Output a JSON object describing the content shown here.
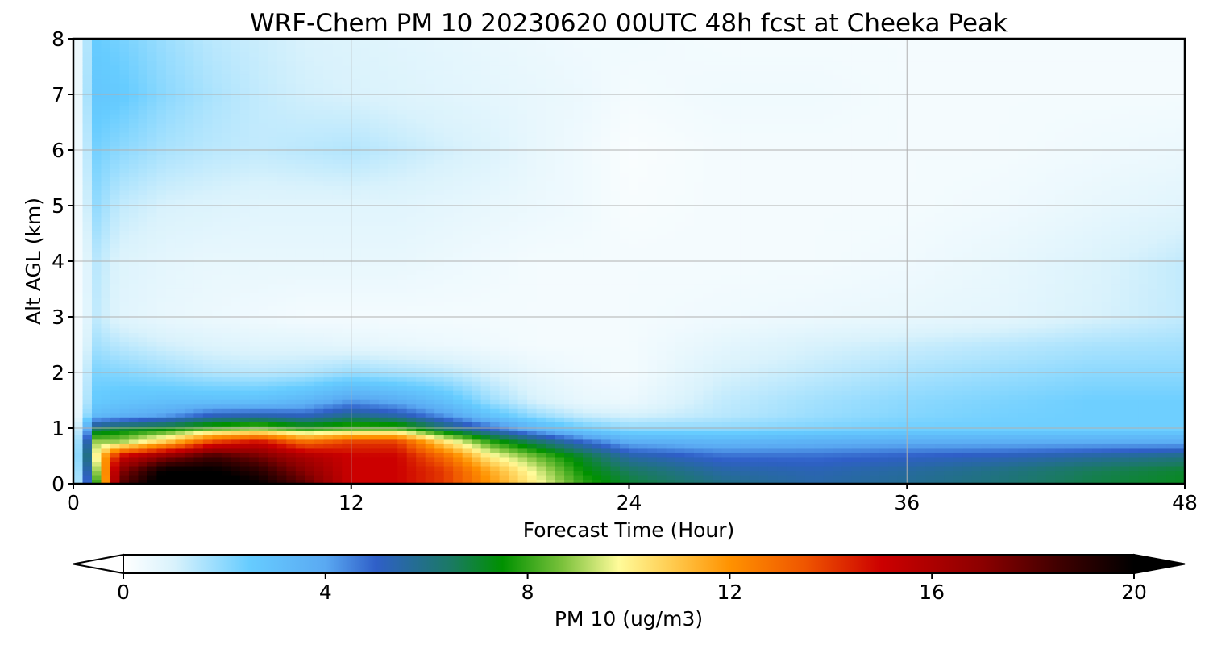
{
  "chart_data": {
    "type": "heatmap",
    "title": "WRF-Chem PM 10  20230620 00UTC 48h fcst at Cheeka Peak",
    "xlabel": "Forecast Time (Hour)",
    "ylabel": "Alt AGL (km)",
    "xlim": [
      0,
      48
    ],
    "ylim": [
      0,
      8
    ],
    "x_ticks": [
      0,
      12,
      24,
      36,
      48
    ],
    "y_ticks": [
      0,
      1,
      2,
      3,
      4,
      5,
      6,
      7,
      8
    ],
    "grid": true,
    "x": [
      0,
      1,
      2,
      4,
      6,
      8,
      10,
      12,
      14,
      16,
      18,
      20,
      22,
      24,
      28,
      32,
      36,
      40,
      44,
      48
    ],
    "y": [
      0,
      0.25,
      0.5,
      0.75,
      1.0,
      1.25,
      1.5,
      2,
      2.5,
      3,
      4,
      5,
      6,
      7,
      8
    ],
    "z": [
      [
        0,
        8,
        18,
        21,
        21,
        20,
        18,
        15,
        15,
        14,
        12,
        10,
        8,
        7,
        6,
        5.5,
        5.8,
        6.2,
        6.8,
        7.2
      ],
      [
        0,
        9,
        17,
        20,
        20,
        19,
        17,
        15,
        15,
        14,
        11.5,
        9.5,
        7.5,
        6.5,
        5.5,
        5.3,
        5.6,
        6.0,
        6.6,
        7.0
      ],
      [
        0,
        10,
        15,
        17,
        18.5,
        17.5,
        16,
        15,
        15,
        13,
        10,
        8.5,
        7,
        5.5,
        4.8,
        4.8,
        5.0,
        5.2,
        5.6,
        6.0
      ],
      [
        0,
        9,
        9,
        11,
        14,
        15,
        13,
        14,
        14,
        10.5,
        8,
        6.5,
        5,
        3.8,
        3.5,
        3.7,
        3.8,
        3.8,
        3.8,
        3.8
      ],
      [
        0,
        6.5,
        7,
        7.5,
        8.5,
        9,
        8,
        8.5,
        8.5,
        6.5,
        5,
        3.5,
        2.5,
        2.0,
        2.0,
        2.2,
        2.4,
        2.4,
        2.4,
        2.4
      ],
      [
        0,
        3.2,
        3.5,
        4,
        5,
        5.2,
        5,
        5.8,
        5.3,
        4.2,
        2.8,
        1.8,
        1.2,
        1.0,
        1.4,
        1.8,
        2.1,
        2.3,
        2.4,
        2.4
      ],
      [
        0,
        2.6,
        2.8,
        3,
        3,
        3,
        3.4,
        4.2,
        3.8,
        3,
        1.8,
        1.0,
        0.6,
        0.5,
        1.3,
        1.7,
        2.0,
        2.2,
        2.4,
        2.4
      ],
      [
        0,
        2.2,
        2.1,
        1.8,
        1.5,
        1.4,
        1.5,
        1.8,
        1.6,
        1.4,
        1.0,
        0.6,
        0.4,
        0.3,
        1.0,
        1.3,
        1.6,
        1.8,
        2.0,
        2.0
      ],
      [
        0,
        1.7,
        1.4,
        1.1,
        0.9,
        0.8,
        0.8,
        0.7,
        0.6,
        0.5,
        0.4,
        0.3,
        0.3,
        0.3,
        0.7,
        1.0,
        1.2,
        1.4,
        1.6,
        1.7
      ],
      [
        0,
        1.3,
        0.8,
        0.6,
        0.5,
        0.4,
        0.3,
        0.3,
        0.3,
        0.3,
        0.3,
        0.3,
        0.3,
        0.3,
        0.4,
        0.5,
        0.6,
        0.7,
        1.0,
        1.3
      ],
      [
        0,
        1.4,
        0.9,
        0.7,
        0.6,
        0.6,
        0.6,
        0.6,
        0.6,
        0.5,
        0.4,
        0.3,
        0.3,
        0.3,
        0.3,
        0.3,
        0.4,
        0.6,
        0.9,
        1.3
      ],
      [
        0,
        1.9,
        1.3,
        1.0,
        0.9,
        0.8,
        0.8,
        0.8,
        0.8,
        0.7,
        0.6,
        0.5,
        0.4,
        0.2,
        0.3,
        0.3,
        0.3,
        0.4,
        0.6,
        0.8
      ],
      [
        0,
        2.3,
        2.0,
        1.6,
        1.4,
        1.3,
        1.4,
        1.5,
        1.3,
        1.1,
        0.9,
        0.6,
        0.4,
        0.15,
        0.3,
        0.3,
        0.3,
        0.3,
        0.4,
        0.5
      ],
      [
        0,
        2.7,
        2.6,
        2.0,
        1.6,
        1.3,
        1.1,
        1.0,
        0.9,
        0.8,
        0.7,
        0.6,
        0.5,
        0.3,
        0.4,
        0.4,
        0.3,
        0.3,
        0.3,
        0.3
      ],
      [
        0,
        2.5,
        2.3,
        1.8,
        1.4,
        1.2,
        1.0,
        0.9,
        0.8,
        0.7,
        0.6,
        0.5,
        0.4,
        0.4,
        0.3,
        0.3,
        0.3,
        0.3,
        0.3,
        0.3
      ]
    ],
    "colorbar": {
      "label": "PM 10  (ug/m3)",
      "min": 0,
      "max": 20,
      "ticks": [
        0,
        4,
        8,
        12,
        16,
        20
      ],
      "extend": "both",
      "colors": [
        [
          0,
          "#ffffff"
        ],
        [
          1,
          "#d9f2fc"
        ],
        [
          2.5,
          "#66ccff"
        ],
        [
          4,
          "#5aa9f2"
        ],
        [
          5,
          "#2f5fc8"
        ],
        [
          6.5,
          "#1a7a62"
        ],
        [
          7.5,
          "#009100"
        ],
        [
          8.7,
          "#7cc23c"
        ],
        [
          9.8,
          "#fffb9a"
        ],
        [
          10.8,
          "#ffce53"
        ],
        [
          12,
          "#ff9200"
        ],
        [
          13.5,
          "#ef5500"
        ],
        [
          15,
          "#cc0000"
        ],
        [
          17,
          "#8c0000"
        ],
        [
          18.5,
          "#400000"
        ],
        [
          20,
          "#000000"
        ]
      ]
    }
  }
}
